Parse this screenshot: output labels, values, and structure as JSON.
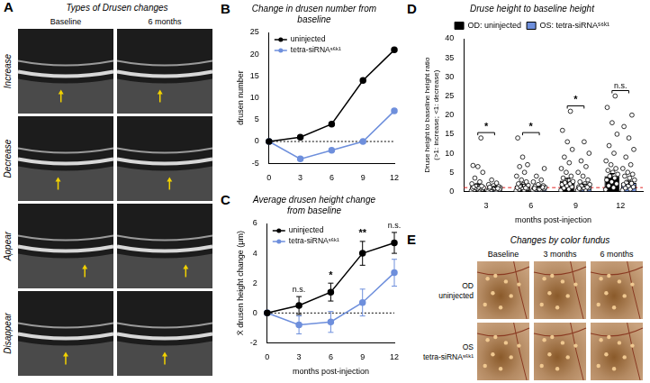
{
  "figure": {
    "A": {
      "panel": "A",
      "title": "Types of Drusen changes",
      "columns": [
        "Baseline",
        "6 months"
      ],
      "rows": [
        "Increase",
        "Decrease",
        "Appear",
        "Disappear"
      ]
    },
    "E": {
      "panel": "E",
      "title": "Changes by color fundus",
      "columns": [
        "Baseline",
        "3 months",
        "6 months"
      ],
      "rows": [
        [
          "OD",
          "uninjected"
        ],
        [
          "OS",
          "tetra-siRNAˢ⁶ᵏ¹"
        ]
      ]
    }
  },
  "chart_data": [
    {
      "panel": "B",
      "type": "line",
      "title": "Change in drusen number from baseline",
      "y_label": "drusen number",
      "x": [
        0,
        3,
        6,
        9,
        12
      ],
      "xlim": [
        0,
        12
      ],
      "xticks": [
        0,
        3,
        6,
        9,
        12
      ],
      "ylim": [
        -5,
        25
      ],
      "yticks": [
        -5,
        0,
        5,
        10,
        15,
        20,
        25
      ],
      "reference_y": 0,
      "marker": "circle",
      "legend": "upper left",
      "grid": false,
      "series": [
        {
          "name": "uninjected",
          "color": "#000000",
          "values": [
            0,
            1,
            4,
            14,
            21
          ]
        },
        {
          "name": "tetra-siRNAˢ⁶ᵏ¹",
          "color": "#6e8fdc",
          "values": [
            0,
            -4,
            -2,
            0,
            7
          ]
        }
      ]
    },
    {
      "panel": "C",
      "type": "line",
      "title": "Average drusen height change from baseline",
      "y_label": "X̄ drusen height change (μm)",
      "x_label": "months post-injection",
      "x": [
        0,
        3,
        6,
        9,
        12
      ],
      "xlim": [
        0,
        12
      ],
      "xticks": [
        0,
        3,
        6,
        9,
        12
      ],
      "ylim": [
        -2,
        6
      ],
      "yticks": [
        -2,
        0,
        2,
        4,
        6
      ],
      "reference_y": 0,
      "marker": "circle",
      "legend": "upper left",
      "grid": false,
      "series": [
        {
          "name": "uninjected",
          "color": "#000000",
          "values": [
            0,
            0.5,
            1.4,
            4.0,
            4.7
          ],
          "errors": [
            0,
            0.6,
            0.6,
            0.8,
            0.7
          ]
        },
        {
          "name": "tetra-siRNAˢ⁶ᵏ¹",
          "color": "#6e8fdc",
          "values": [
            0,
            -0.8,
            -0.6,
            0.7,
            2.7
          ],
          "errors": [
            0,
            0.6,
            0.7,
            0.9,
            0.9
          ]
        }
      ],
      "annotations": [
        {
          "x": 3,
          "text": "n.s."
        },
        {
          "x": 6,
          "text": "*"
        },
        {
          "x": 9,
          "text": "**"
        },
        {
          "x": 12,
          "text": "n.s."
        }
      ]
    },
    {
      "panel": "D",
      "type": "bar",
      "title": "Druse height to baseline height",
      "y_label": [
        "Druse height to baseline height ratio",
        "(>1: increase; <1: decrease)"
      ],
      "x_label": "months post-injection",
      "categories": [
        "3",
        "6",
        "9",
        "12"
      ],
      "ylim": [
        0,
        40
      ],
      "yticks": [
        0,
        5,
        10,
        15,
        20,
        25,
        30,
        35,
        40
      ],
      "reference_y": 1,
      "legend": "top",
      "grid": false,
      "series": [
        {
          "name": "OD: uninjected",
          "color": "#000000",
          "values": [
            1.5,
            1.5,
            2.8,
            4.0
          ],
          "errors": [
            0.4,
            0.4,
            0.6,
            0.7
          ],
          "points": [
            [
              0.2,
              0.4,
              0.5,
              0.6,
              0.7,
              0.8,
              0.9,
              1,
              1,
              1.1,
              1.2,
              1.4,
              1.6,
              2,
              2.5,
              3.5,
              5,
              6.5,
              6.8,
              14
            ],
            [
              0.2,
              0.4,
              0.6,
              0.8,
              1,
              1,
              1.2,
              1.4,
              1.6,
              1.8,
              2,
              2.5,
              3,
              4,
              5,
              6.5,
              7,
              9,
              14,
              0.9
            ],
            [
              0.3,
              0.6,
              0.9,
              1.2,
              1.5,
              1.8,
              2,
              2.3,
              2.6,
              3,
              3.5,
              4,
              5,
              6,
              7.5,
              9,
              11,
              13,
              16,
              21
            ],
            [
              0.5,
              1,
              1.5,
              2,
              2.5,
              3,
              3.5,
              4,
              4.5,
              5,
              5.5,
              6,
              7,
              8,
              10,
              12,
              15,
              18,
              22,
              25
            ]
          ]
        },
        {
          "name": "OS: tetra-siRNAˢ⁶ᵏ¹",
          "color": "#6e8fdc",
          "values": [
            1.0,
            1.0,
            1.5,
            2.2
          ],
          "errors": [
            0.2,
            0.3,
            0.4,
            0.5
          ],
          "points": [
            [
              0.2,
              0.3,
              0.5,
              0.6,
              0.7,
              0.8,
              0.9,
              1,
              1,
              1.1,
              1.2,
              1.3,
              1.5,
              1.8,
              2.2,
              3,
              0.6,
              0.9,
              1.1,
              0.8
            ],
            [
              0.3,
              0.5,
              0.6,
              0.7,
              0.8,
              0.9,
              1,
              1,
              1.1,
              1.2,
              1.3,
              1.5,
              1.8,
              2.5,
              3,
              4,
              6,
              0.6,
              0.8,
              1.1
            ],
            [
              0.3,
              0.5,
              0.7,
              0.9,
              1,
              1.2,
              1.4,
              1.6,
              1.8,
              2,
              2.5,
              3,
              4,
              5,
              6.5,
              8,
              10,
              13,
              0.8,
              1.1
            ],
            [
              0.3,
              0.6,
              0.9,
              1.2,
              1.5,
              1.8,
              2.1,
              2.4,
              3,
              3.5,
              4,
              4.5,
              5,
              6,
              7,
              9,
              11,
              14,
              17,
              20
            ]
          ]
        }
      ],
      "annotations": [
        {
          "x": "3",
          "text": "*"
        },
        {
          "x": "6",
          "text": "*"
        },
        {
          "x": "9",
          "text": "*"
        },
        {
          "x": "12",
          "text": "n.s."
        }
      ]
    }
  ]
}
